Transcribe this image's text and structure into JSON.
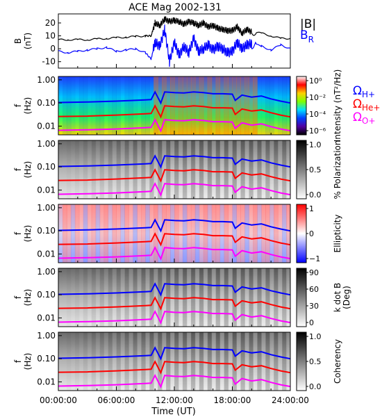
{
  "title": "ACE Mag 2002-131",
  "x_axis": {
    "label": "Time (UT)",
    "ticks": [
      "00:00:00",
      "06:00:00",
      "12:00:00",
      "18:00:00",
      "24:00:00"
    ],
    "range_hours": [
      0,
      24
    ]
  },
  "frequency_ticks": [
    "1.00",
    "0.10",
    "0.01"
  ],
  "chart_data": [
    {
      "type": "line",
      "panel": "B",
      "ylabel": "B (nT)",
      "ylim": [
        -15,
        27
      ],
      "yticks": [
        "20",
        "10",
        "0",
        "-10"
      ],
      "legend": [
        "|B|",
        "BR"
      ],
      "series": [
        {
          "name": "|B|",
          "color": "#000000",
          "x": [
            0,
            1,
            2,
            3,
            4,
            5,
            6,
            7,
            8,
            9,
            9.6,
            10,
            10.5,
            11,
            11.5,
            12,
            12.5,
            13,
            13.5,
            14,
            14.5,
            15,
            15.5,
            16,
            16.5,
            17,
            17.5,
            18,
            18.5,
            19,
            19.5,
            20,
            21,
            22,
            23,
            24
          ],
          "values": [
            7,
            7,
            7,
            7,
            7.5,
            8,
            8.5,
            9,
            9.5,
            10,
            10,
            20,
            18,
            23,
            21,
            22,
            21,
            19,
            21,
            20,
            18,
            20,
            17,
            18,
            16,
            15,
            14,
            14,
            17,
            12,
            15,
            13,
            12,
            10,
            8,
            8
          ]
        },
        {
          "name": "BR",
          "color": "#0000ff",
          "x": [
            0,
            1,
            2,
            3,
            4,
            5,
            6,
            7,
            8,
            9,
            9.6,
            10,
            10.5,
            11,
            11.5,
            12,
            12.5,
            13,
            13.5,
            14,
            14.5,
            15,
            15.5,
            16,
            16.5,
            17,
            17.5,
            18,
            18.5,
            19,
            19.5,
            20,
            21,
            22,
            23,
            24
          ],
          "values": [
            -2,
            -3,
            -2,
            -1,
            0,
            1,
            -2,
            -1,
            0,
            -3,
            -8,
            5,
            2,
            15,
            -10,
            5,
            -5,
            2,
            -3,
            8,
            -2,
            0,
            3,
            -1,
            2,
            0,
            -3,
            -2,
            5,
            0,
            3,
            4,
            2,
            -1,
            3,
            0
          ]
        }
      ]
    },
    {
      "type": "heatmap",
      "panel": "Intensity",
      "ylabel": "f (Hz)",
      "scale": "log",
      "colorbar_label": "Intensity (nT²/Hz)",
      "colorbar_ticks": [
        "10⁰",
        "10⁻²",
        "10⁻⁴",
        "10⁻⁶"
      ],
      "colorbar_colors": [
        "#ffffff",
        "#ff0000",
        "#ffd000",
        "#80ff00",
        "#00e0ff",
        "#0040ff",
        "#5000a0",
        "#000000"
      ],
      "legend": [
        {
          "label": "Ω",
          "sub": "H+",
          "color": "#0000ff"
        },
        {
          "label": "Ω",
          "sub": "He+",
          "color": "#ff0000"
        },
        {
          "label": "Ω",
          "sub": "O+",
          "color": "#ff00ff"
        }
      ]
    },
    {
      "type": "heatmap",
      "panel": "% Polarization",
      "ylabel": "f (Hz)",
      "colorbar_label": "% Polarization",
      "colorbar_ticks": [
        "1.0",
        "0.5",
        "0.0"
      ],
      "colorbar_colors": [
        "#000000",
        "#808080",
        "#ffffff"
      ]
    },
    {
      "type": "heatmap",
      "panel": "Ellipticity",
      "ylabel": "f (Hz)",
      "colorbar_label": "Ellipticity",
      "colorbar_ticks": [
        "1",
        "0",
        "−1"
      ],
      "colorbar_colors": [
        "#ff0000",
        "#ffffff",
        "#0000ff"
      ]
    },
    {
      "type": "heatmap",
      "panel": "k dot B",
      "ylabel": "f (Hz)",
      "colorbar_label": "k dot B",
      "colorbar_unit": "(Deg)",
      "colorbar_ticks": [
        "90",
        "60",
        "30",
        "0"
      ],
      "colorbar_colors": [
        "#000000",
        "#808080",
        "#ffffff"
      ]
    },
    {
      "type": "heatmap",
      "panel": "Coherency",
      "ylabel": "f (Hz)",
      "colorbar_label": "Coherency",
      "colorbar_ticks": [
        "1.0",
        "0.5",
        "0.0"
      ],
      "colorbar_colors": [
        "#000000",
        "#808080",
        "#ffffff"
      ]
    }
  ],
  "gyrofrequency_lines": [
    {
      "name": "H+",
      "color": "#0000ff",
      "x": [
        0,
        3,
        6,
        9,
        9.6,
        10,
        10.6,
        11,
        12,
        13,
        14,
        15,
        16,
        17,
        18,
        18.3,
        19,
        20,
        21,
        22,
        23,
        24
      ],
      "values": [
        0.105,
        0.11,
        0.12,
        0.135,
        0.14,
        0.3,
        0.1,
        0.3,
        0.28,
        0.27,
        0.3,
        0.28,
        0.25,
        0.25,
        0.24,
        0.13,
        0.22,
        0.18,
        0.2,
        0.15,
        0.12,
        0.1
      ]
    },
    {
      "name": "He+",
      "color": "#ff0000",
      "x": [
        0,
        3,
        6,
        9,
        9.6,
        10,
        10.6,
        11,
        12,
        13,
        14,
        15,
        16,
        17,
        18,
        18.3,
        19,
        20,
        21,
        22,
        23,
        24
      ],
      "values": [
        0.026,
        0.027,
        0.03,
        0.034,
        0.035,
        0.075,
        0.025,
        0.075,
        0.07,
        0.068,
        0.075,
        0.07,
        0.062,
        0.062,
        0.06,
        0.032,
        0.055,
        0.045,
        0.05,
        0.038,
        0.03,
        0.025
      ]
    },
    {
      "name": "O+",
      "color": "#ff00ff",
      "x": [
        0,
        3,
        6,
        9,
        9.6,
        10,
        10.6,
        11,
        12,
        13,
        14,
        15,
        16,
        17,
        18,
        18.3,
        19,
        20,
        21,
        22,
        23,
        24
      ],
      "values": [
        0.0066,
        0.0069,
        0.0075,
        0.0085,
        0.0088,
        0.019,
        0.0062,
        0.019,
        0.0175,
        0.017,
        0.019,
        0.0175,
        0.0155,
        0.0155,
        0.015,
        0.008,
        0.014,
        0.011,
        0.0125,
        0.0095,
        0.0075,
        0.0063
      ]
    }
  ]
}
